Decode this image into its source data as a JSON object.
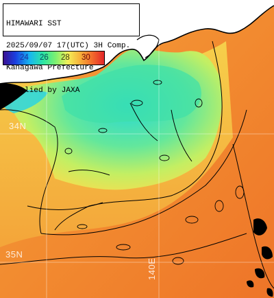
{
  "title_box": {
    "line1": "HIMAWARI SST",
    "line2": "2025/09/07 17(UTC) 3H Comp.",
    "line3": "Kanagawa Prefecture",
    "line4": "supplied by JAXA"
  },
  "color_scale": {
    "ticks": [
      "24",
      "26",
      "28",
      "30"
    ],
    "tick_colors": [
      "#1a2e9e",
      "#0a4a5a",
      "#3a3a10",
      "#6a0808"
    ],
    "low_color": "#3a1190",
    "high_color": "#e3262a"
  },
  "grid_labels": {
    "lat_34": "34N",
    "lat_35": "35N",
    "lon_140": "140E"
  },
  "colors": {
    "land": "#000000",
    "land_white": "#ffffff",
    "warm_sea": "#f07a2c",
    "mid_sea": "#f2c84a",
    "cool_sea": "#34dfc0",
    "coast_line": "#000000"
  }
}
